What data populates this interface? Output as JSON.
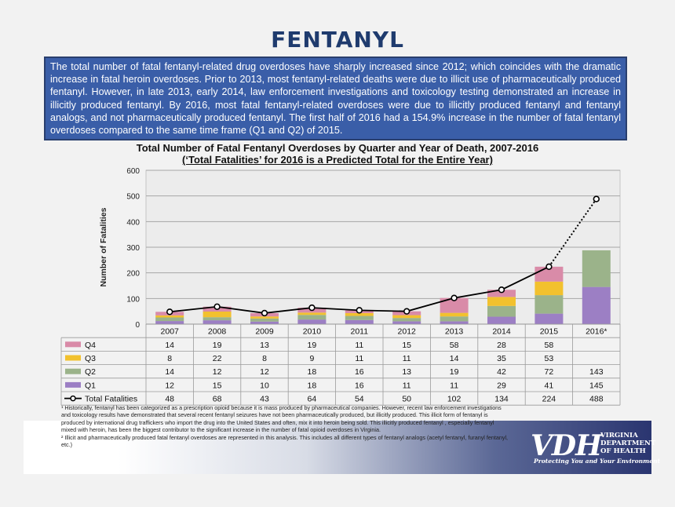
{
  "page_title": "FENTANYL",
  "summary": "The total number of fatal fentanyl-related drug overdoses have sharply increased since 2012; which coincides with the dramatic increase in fatal heroin overdoses. Prior to 2013, most fentanyl-related deaths were due to illicit use of pharmaceutically produced fentanyl. However, in late 2013, early 2014, law enforcement investigations and toxicology testing demonstrated an increase in illicitly produced fentanyl. By 2016, most fatal fentanyl-related overdoses were due to illicitly produced fentanyl and fentanyl analogs, and not pharmaceutically produced fentanyl. The first half of 2016 had a 154.9% increase in the number of fatal fentanyl overdoses compared to the same time frame (Q1 and Q2) of 2015.",
  "footnotes": {
    "note1": "¹ Historically, fentanyl has been categorized as a prescription opioid because it is mass produced by pharmaceutical companies. However, recent law enforcement investigations and toxicology results have demonstrated that several recent fentanyl seizures have not been pharmaceutically produced, but illicitly produced. This illicit form of fentanyl is produced by international drug traffickers who import the drug into the United States and often, mix it into heroin being sold. This illicitly produced fentanyl , especially fentanyl mixed with heroin, has been the biggest contributor to the significant increase in the number of fatal opioid overdoses in Virginia.",
    "note2": "² Illicit and pharmaceutically produced fatal fentanyl overdoses are represented in this analysis. This includes all different types of fentanyl analogs (acetyl fentanyl, furanyl fentanyl, etc.)"
  },
  "logo": {
    "mark": "VDH",
    "dept_line1": "VIRGINIA",
    "dept_line2": "DEPARTMENT",
    "dept_line3": "OF HEALTH",
    "tagline": "Protecting You and Your Environment"
  },
  "chart_data": {
    "type": "bar",
    "stacked": true,
    "title": "Total Number of Fatal Fentanyl Overdoses by Quarter and Year of Death, 2007-2016",
    "subtitle": "(‘Total Fatalities’ for 2016 is a Predicted Total for the Entire Year)",
    "ylabel": "Number of Fatalities",
    "xlabel": "",
    "ylim": [
      0,
      600
    ],
    "yticks": [
      0,
      100,
      200,
      300,
      400,
      500,
      600
    ],
    "grid": true,
    "categories": [
      "2007",
      "2008",
      "2009",
      "2010",
      "2011",
      "2012",
      "2013",
      "2014",
      "2015",
      "2016*"
    ],
    "series": [
      {
        "name": "Q4",
        "color": "#d98ba8",
        "values": [
          14,
          19,
          13,
          19,
          11,
          15,
          58,
          28,
          58,
          null
        ]
      },
      {
        "name": "Q3",
        "color": "#f2c12e",
        "values": [
          8,
          22,
          8,
          9,
          11,
          11,
          14,
          35,
          53,
          null
        ]
      },
      {
        "name": "Q2",
        "color": "#9bb38a",
        "values": [
          14,
          12,
          12,
          18,
          16,
          13,
          19,
          42,
          72,
          143
        ]
      },
      {
        "name": "Q1",
        "color": "#9c7fc4",
        "values": [
          12,
          15,
          10,
          18,
          16,
          11,
          11,
          29,
          41,
          145
        ]
      }
    ],
    "line": {
      "name": "Total Fatalities",
      "color": "#000000",
      "values": [
        48,
        68,
        43,
        64,
        54,
        50,
        102,
        134,
        224,
        488
      ],
      "dotted_last_segment": true
    },
    "data_table": true
  }
}
